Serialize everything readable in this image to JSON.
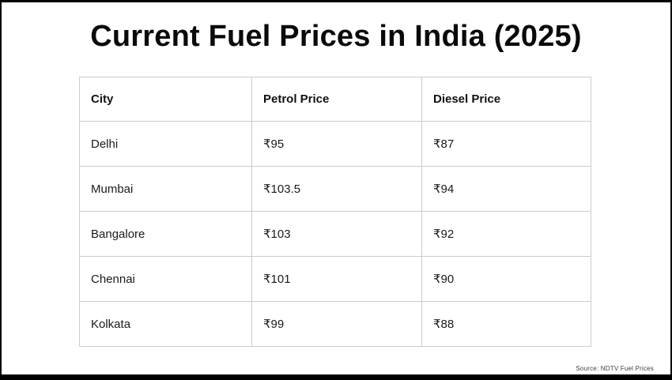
{
  "title": "Current Fuel Prices in India (2025)",
  "source_note": "Source: NDTV Fuel Prices",
  "colors": {
    "frame": "#000000",
    "table_border": "#cccccc",
    "text": "#1a1a1a",
    "source_text": "#3d3d3d",
    "background": "#ffffff"
  },
  "table": {
    "headers": [
      "City",
      "Petrol Price",
      "Diesel Price"
    ],
    "rows": [
      [
        "Delhi",
        "₹95",
        "₹87"
      ],
      [
        "Mumbai",
        "₹103.5",
        "₹94"
      ],
      [
        "Bangalore",
        "₹103",
        "₹92"
      ],
      [
        "Chennai",
        "₹101",
        "₹90"
      ],
      [
        "Kolkata",
        "₹99",
        "₹88"
      ]
    ]
  },
  "chart_data": {
    "type": "table",
    "title": "Current Fuel Prices in India (2025)",
    "columns": [
      "City",
      "Petrol Price",
      "Diesel Price"
    ],
    "categories": [
      "Delhi",
      "Mumbai",
      "Bangalore",
      "Chennai",
      "Kolkata"
    ],
    "series": [
      {
        "name": "Petrol Price",
        "values": [
          95,
          103.5,
          103,
          101,
          99
        ]
      },
      {
        "name": "Diesel Price",
        "values": [
          87,
          94,
          92,
          90,
          88
        ]
      }
    ],
    "currency": "INR",
    "source": "Source: NDTV Fuel Prices"
  }
}
